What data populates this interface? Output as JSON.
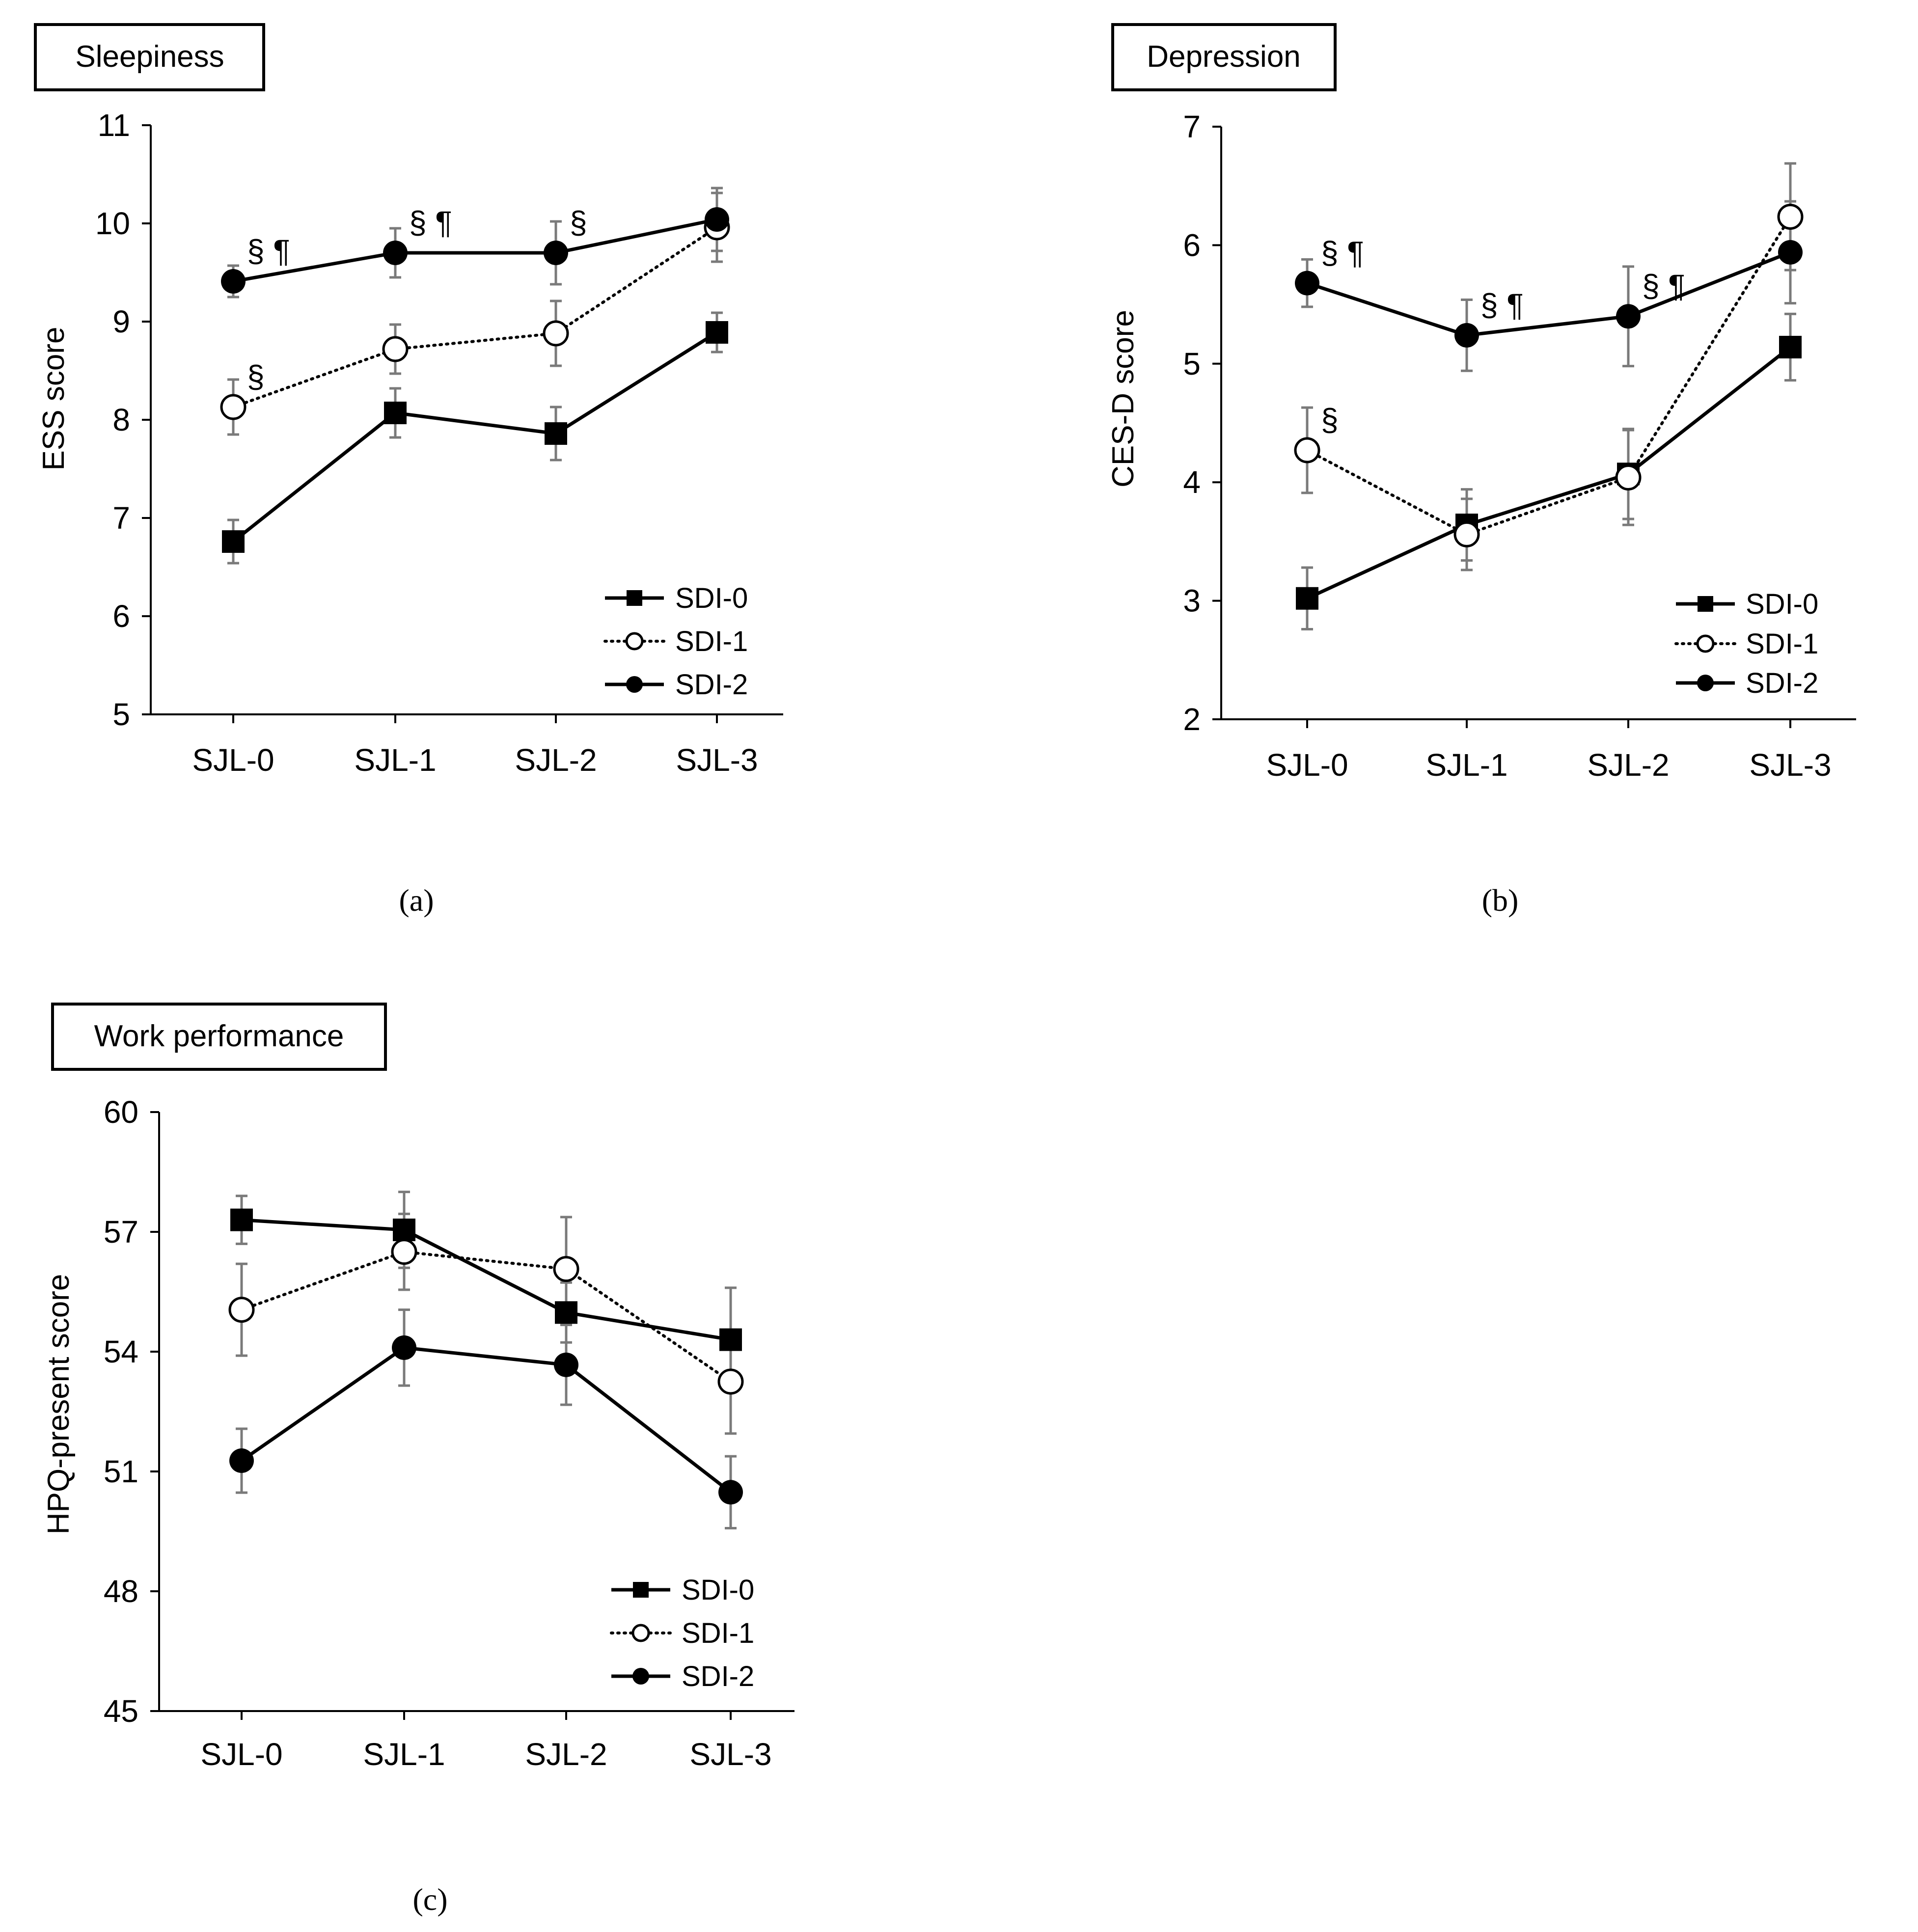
{
  "chart_data": [
    {
      "type": "line",
      "panel_label": "(a)",
      "title": "Sleepiness",
      "xlabel": "",
      "ylabel": "ESS score",
      "categories": [
        "SJL-0",
        "SJL-1",
        "SJL-2",
        "SJL-3"
      ],
      "ylim": [
        5,
        11
      ],
      "yticks": [
        "5",
        "6",
        "7",
        "8",
        "9",
        "10",
        "11"
      ],
      "legend_position": "bottom-right",
      "series": [
        {
          "name": "SDI-0",
          "style": "solid",
          "marker": "filled-square",
          "values": [
            6.76,
            8.07,
            7.86,
            8.89
          ],
          "errors": [
            0.22,
            0.25,
            0.27,
            0.2
          ]
        },
        {
          "name": "SDI-1",
          "style": "dotted",
          "marker": "open-circle",
          "values": [
            8.13,
            8.72,
            8.88,
            9.96
          ],
          "errors": [
            0.28,
            0.25,
            0.33,
            0.35
          ]
        },
        {
          "name": "SDI-2",
          "style": "solid",
          "marker": "filled-circle",
          "values": [
            9.41,
            9.7,
            9.7,
            10.04
          ],
          "errors": [
            0.16,
            0.25,
            0.32,
            0.32
          ]
        }
      ],
      "annotations": [
        {
          "category": "SJL-0",
          "series": "SDI-2",
          "text": "§ ¶"
        },
        {
          "category": "SJL-1",
          "series": "SDI-2",
          "text": "§ ¶"
        },
        {
          "category": "SJL-2",
          "series": "SDI-2",
          "text": "§"
        },
        {
          "category": "SJL-0",
          "series": "SDI-1",
          "text": "§"
        }
      ]
    },
    {
      "type": "line",
      "panel_label": "(b)",
      "title": "Depression",
      "xlabel": "",
      "ylabel": "CES-D score",
      "categories": [
        "SJL-0",
        "SJL-1",
        "SJL-2",
        "SJL-3"
      ],
      "ylim": [
        2,
        7
      ],
      "yticks": [
        "2",
        "3",
        "4",
        "5",
        "6",
        "7"
      ],
      "legend_position": "bottom-right",
      "series": [
        {
          "name": "SDI-0",
          "style": "solid",
          "marker": "filled-square",
          "values": [
            3.02,
            3.64,
            4.07,
            5.14
          ],
          "errors": [
            0.26,
            0.3,
            0.38,
            0.28
          ]
        },
        {
          "name": "SDI-1",
          "style": "dotted",
          "marker": "open-circle",
          "values": [
            4.27,
            3.56,
            4.04,
            6.24
          ],
          "errors": [
            0.36,
            0.3,
            0.4,
            0.45
          ]
        },
        {
          "name": "SDI-2",
          "style": "solid",
          "marker": "filled-circle",
          "values": [
            5.68,
            5.24,
            5.4,
            5.94
          ],
          "errors": [
            0.2,
            0.3,
            0.42,
            0.43
          ]
        }
      ],
      "annotations": [
        {
          "category": "SJL-0",
          "series": "SDI-2",
          "text": "§ ¶"
        },
        {
          "category": "SJL-1",
          "series": "SDI-2",
          "text": "§ ¶"
        },
        {
          "category": "SJL-2",
          "series": "SDI-2",
          "text": "§ ¶"
        },
        {
          "category": "SJL-0",
          "series": "SDI-1",
          "text": "§"
        }
      ]
    },
    {
      "type": "line",
      "panel_label": "(c)",
      "title": "Work performance",
      "xlabel": "",
      "ylabel": "HPQ-present score",
      "categories": [
        "SJL-0",
        "SJL-1",
        "SJL-2",
        "SJL-3"
      ],
      "ylim": [
        45,
        60
      ],
      "yticks": [
        "45",
        "48",
        "51",
        "54",
        "57",
        "60"
      ],
      "legend_position": "bottom-right",
      "series": [
        {
          "name": "SDI-0",
          "style": "solid",
          "marker": "filled-square",
          "values": [
            57.3,
            57.05,
            54.98,
            54.3
          ],
          "errors": [
            0.6,
            0.95,
            0.75,
            1.3
          ]
        },
        {
          "name": "SDI-1",
          "style": "dotted",
          "marker": "open-circle",
          "values": [
            55.05,
            56.5,
            56.07,
            53.25
          ],
          "errors": [
            1.15,
            0.95,
            1.3,
            1.3
          ]
        },
        {
          "name": "SDI-2",
          "style": "solid",
          "marker": "filled-circle",
          "values": [
            51.27,
            54.1,
            53.67,
            50.48
          ],
          "errors": [
            0.8,
            0.95,
            1.0,
            0.9
          ]
        }
      ],
      "annotations": []
    }
  ]
}
